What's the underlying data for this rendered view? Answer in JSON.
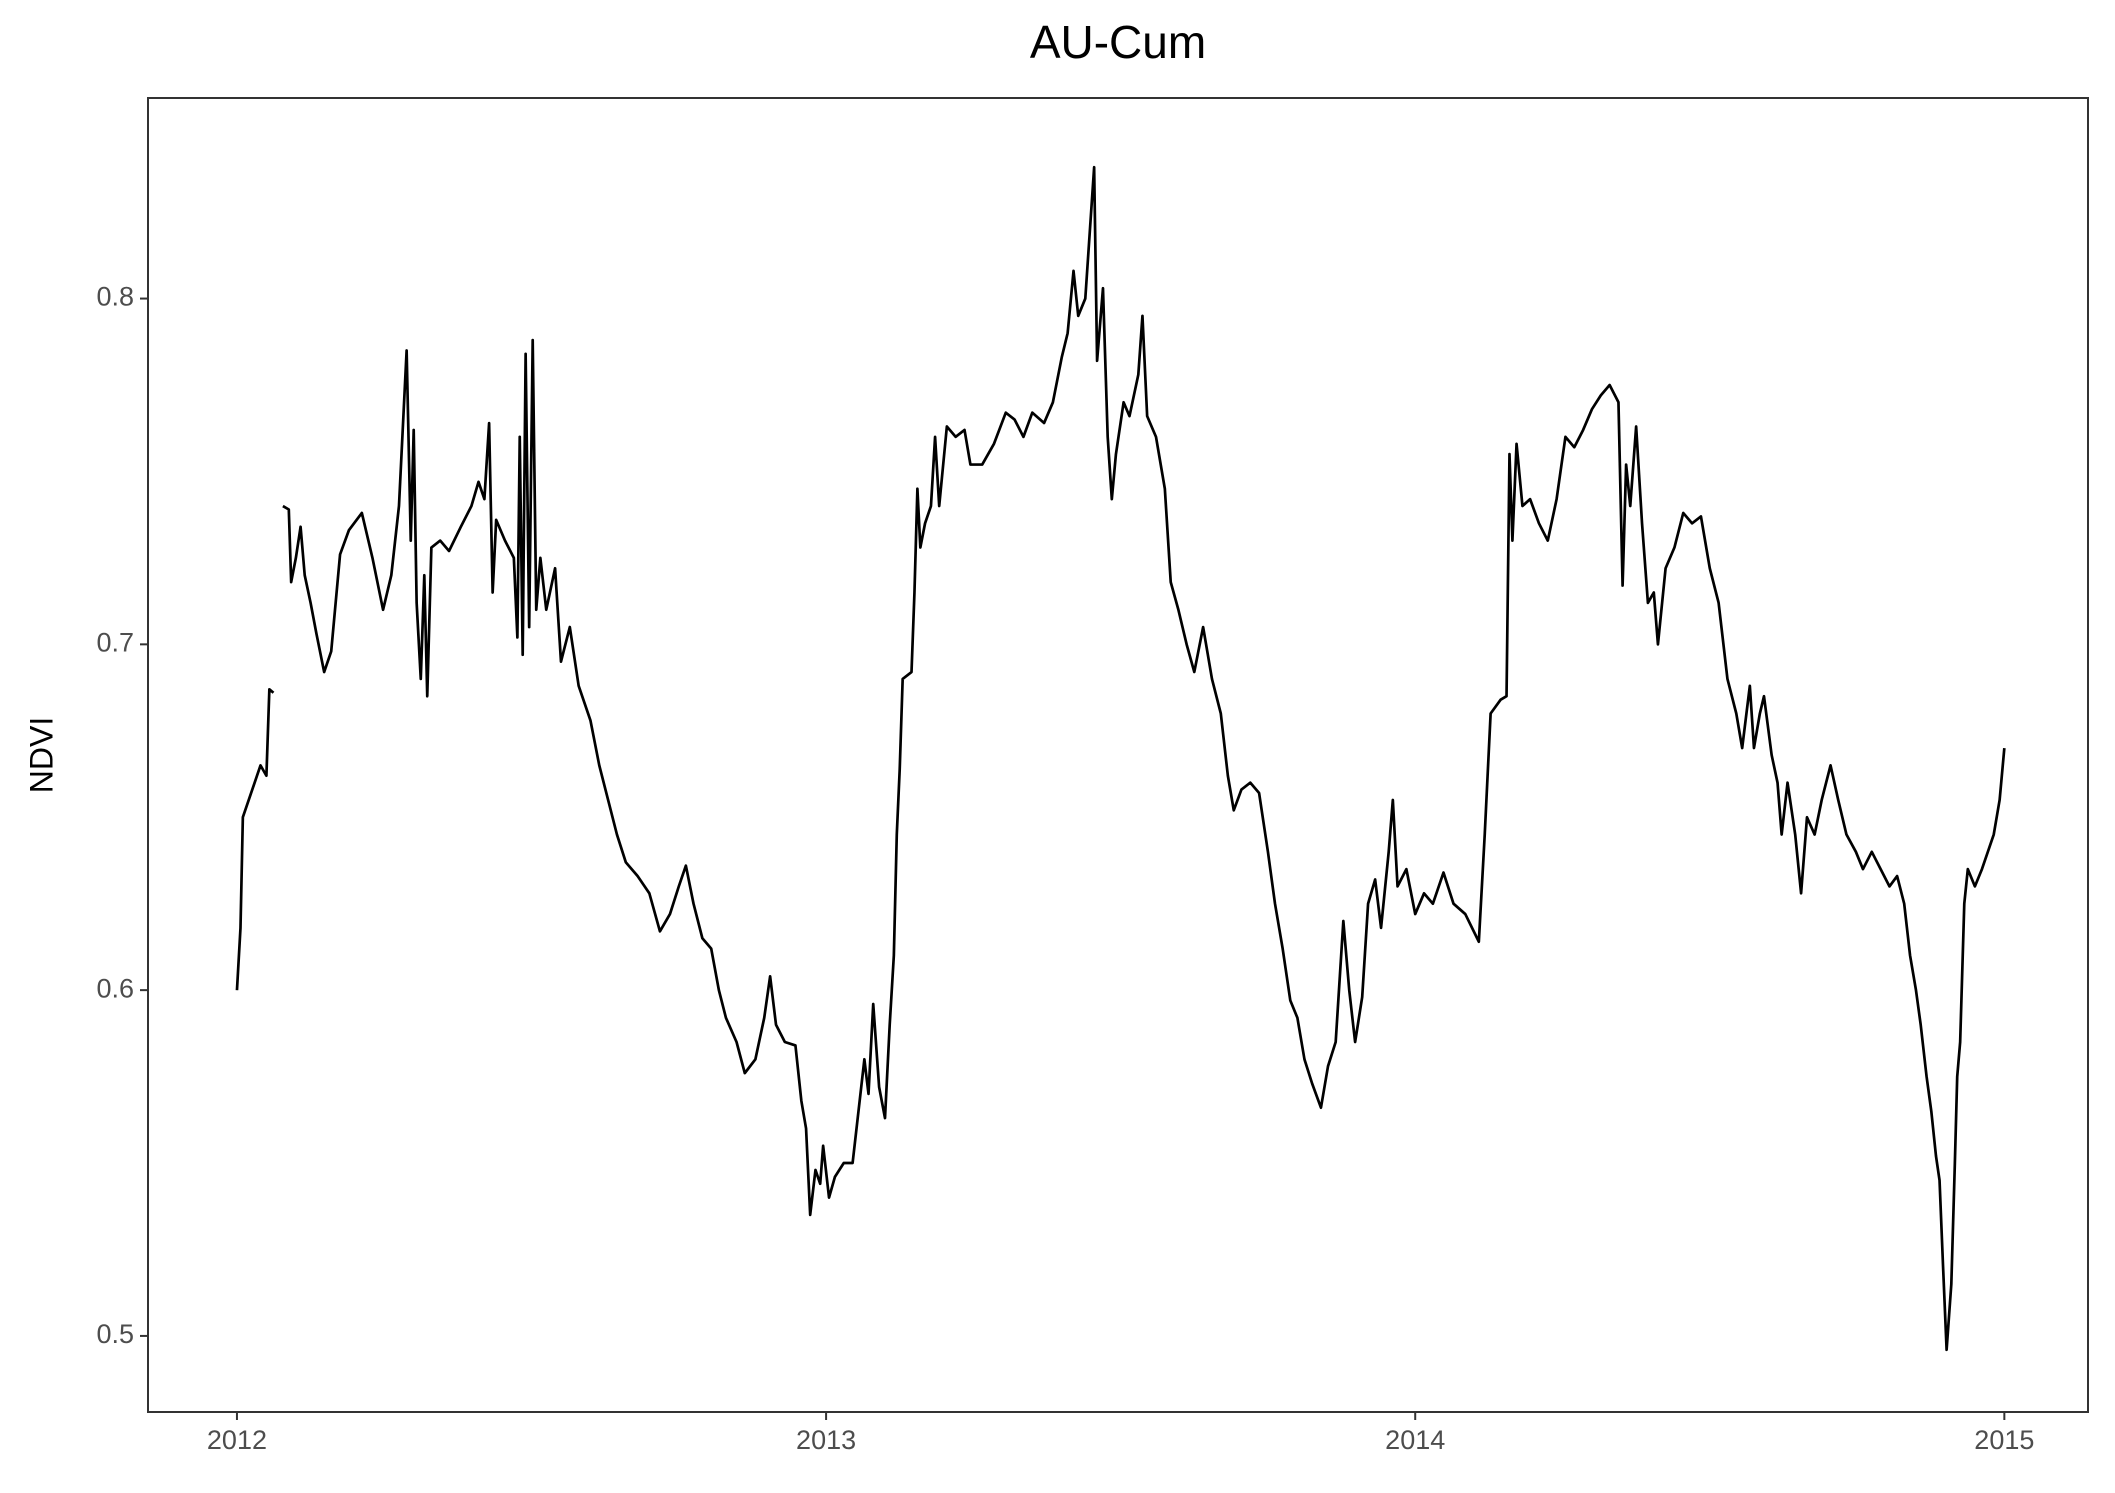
{
  "chart_data": {
    "type": "line",
    "title": "AU-Cum",
    "y_label": "NDVI",
    "x": [
      2012.0,
      2012.006,
      2012.01,
      2012.02,
      2012.03,
      2012.04,
      2012.05,
      2012.055,
      2012.062,
      2012.07,
      2012.078,
      2012.088,
      2012.092,
      2012.1,
      2012.108,
      2012.115,
      2012.125,
      2012.135,
      2012.148,
      2012.16,
      2012.175,
      2012.19,
      2012.212,
      2012.23,
      2012.248,
      2012.262,
      2012.275,
      2012.288,
      2012.295,
      2012.3,
      2012.305,
      2012.312,
      2012.318,
      2012.323,
      2012.33,
      2012.345,
      2012.36,
      2012.38,
      2012.398,
      2012.41,
      2012.42,
      2012.428,
      2012.434,
      2012.44,
      2012.455,
      2012.47,
      2012.476,
      2012.48,
      2012.485,
      2012.49,
      2012.496,
      2012.502,
      2012.508,
      2012.515,
      2012.525,
      2012.54,
      2012.55,
      2012.565,
      2012.58,
      2012.6,
      2012.615,
      2012.63,
      2012.645,
      2012.66,
      2012.68,
      2012.7,
      2012.718,
      2012.735,
      2012.75,
      2012.762,
      2012.775,
      2012.79,
      2012.805,
      2012.818,
      2012.83,
      2012.848,
      2012.862,
      2012.88,
      2012.895,
      2012.905,
      2012.915,
      2012.93,
      2012.948,
      2012.958,
      2012.966,
      2012.973,
      2012.982,
      2012.99,
      2012.995,
      2013.005,
      2013.015,
      2013.03,
      2013.045,
      2013.055,
      2013.065,
      2013.072,
      2013.08,
      2013.09,
      2013.1,
      2013.108,
      2013.115,
      2013.12,
      2013.125,
      2013.13,
      2013.145,
      2013.15,
      2013.155,
      2013.16,
      2013.168,
      2013.178,
      2013.185,
      2013.192,
      2013.205,
      2013.22,
      2013.235,
      2013.245,
      2013.265,
      2013.285,
      2013.305,
      2013.32,
      2013.335,
      2013.35,
      2013.37,
      2013.385,
      2013.4,
      2013.41,
      2013.42,
      2013.428,
      2013.44,
      2013.455,
      2013.46,
      2013.47,
      2013.478,
      2013.485,
      2013.492,
      2013.505,
      2013.515,
      2013.53,
      2013.537,
      2013.545,
      2013.56,
      2013.575,
      2013.585,
      2013.598,
      2013.612,
      2013.625,
      2013.64,
      2013.655,
      2013.67,
      2013.682,
      2013.692,
      2013.705,
      2013.72,
      2013.735,
      2013.75,
      2013.762,
      2013.775,
      2013.788,
      2013.8,
      2013.812,
      2013.825,
      2013.84,
      2013.852,
      2013.865,
      2013.878,
      2013.888,
      2013.898,
      2013.91,
      2013.92,
      2013.932,
      2013.942,
      2013.955,
      2013.962,
      2013.97,
      2013.985,
      2014.0,
      2014.015,
      2014.03,
      2014.048,
      2014.065,
      2014.085,
      2014.108,
      2014.118,
      2014.128,
      2014.145,
      2014.155,
      2014.16,
      2014.165,
      2014.172,
      2014.182,
      2014.195,
      2014.21,
      2014.225,
      2014.24,
      2014.255,
      2014.27,
      2014.285,
      2014.3,
      2014.315,
      2014.33,
      2014.345,
      2014.352,
      2014.358,
      2014.365,
      2014.375,
      2014.385,
      2014.395,
      2014.405,
      2014.412,
      2014.425,
      2014.44,
      2014.455,
      2014.47,
      2014.485,
      2014.5,
      2014.515,
      2014.53,
      2014.545,
      2014.555,
      2014.568,
      2014.575,
      2014.585,
      2014.592,
      2014.605,
      2014.615,
      2014.622,
      2014.632,
      2014.645,
      2014.655,
      2014.665,
      2014.678,
      2014.69,
      2014.705,
      2014.718,
      2014.732,
      2014.748,
      2014.76,
      2014.775,
      2014.79,
      2014.805,
      2014.818,
      2014.83,
      2014.84,
      2014.85,
      2014.858,
      2014.868,
      2014.876,
      2014.884,
      2014.89,
      2014.896,
      2014.902,
      2014.91,
      2014.916,
      2014.92,
      2014.925,
      2014.932,
      2014.938,
      2014.95,
      2014.962,
      2014.972,
      2014.982,
      2014.992,
      2015.0
    ],
    "series": [
      {
        "color": "#000000",
        "values": [
          0.6,
          0.618,
          0.65,
          0.655,
          0.66,
          0.665,
          0.662,
          0.687,
          0.686,
          null,
          0.74,
          0.739,
          0.718,
          0.725,
          0.734,
          0.72,
          0.712,
          0.703,
          0.692,
          0.698,
          0.726,
          0.733,
          0.738,
          0.725,
          0.71,
          0.72,
          0.74,
          0.785,
          0.73,
          0.762,
          0.712,
          0.69,
          0.72,
          0.685,
          0.728,
          0.73,
          0.727,
          0.734,
          0.74,
          0.747,
          0.742,
          0.764,
          0.715,
          0.736,
          0.73,
          0.725,
          0.702,
          0.76,
          0.697,
          0.784,
          0.705,
          0.788,
          0.71,
          0.725,
          0.71,
          0.722,
          0.695,
          0.705,
          0.688,
          0.678,
          0.665,
          0.655,
          0.645,
          0.637,
          0.633,
          0.628,
          0.617,
          0.622,
          0.63,
          0.636,
          0.625,
          0.615,
          0.612,
          0.6,
          0.592,
          0.585,
          0.576,
          0.58,
          0.592,
          0.604,
          0.59,
          0.585,
          0.584,
          0.568,
          0.56,
          0.535,
          0.548,
          0.544,
          0.555,
          0.54,
          0.546,
          0.55,
          0.55,
          0.565,
          0.58,
          0.57,
          0.596,
          0.572,
          0.563,
          0.59,
          0.61,
          0.645,
          0.664,
          0.69,
          0.692,
          0.715,
          0.745,
          0.728,
          0.735,
          0.74,
          0.76,
          0.74,
          0.763,
          0.76,
          0.762,
          0.752,
          0.752,
          0.758,
          0.767,
          0.765,
          0.76,
          0.767,
          0.764,
          0.77,
          0.783,
          0.79,
          0.808,
          0.795,
          0.8,
          0.838,
          0.782,
          0.803,
          0.76,
          0.742,
          0.755,
          0.77,
          0.766,
          0.778,
          0.795,
          0.766,
          0.76,
          0.745,
          0.718,
          0.71,
          0.7,
          0.692,
          0.705,
          0.69,
          0.68,
          0.662,
          0.652,
          0.658,
          0.66,
          0.657,
          0.64,
          0.625,
          0.612,
          0.597,
          0.592,
          0.58,
          0.573,
          0.566,
          0.578,
          0.585,
          0.62,
          0.6,
          0.585,
          0.598,
          0.625,
          0.632,
          0.618,
          0.64,
          0.655,
          0.63,
          0.635,
          0.622,
          0.628,
          0.625,
          0.634,
          0.625,
          0.622,
          0.614,
          0.645,
          0.68,
          0.684,
          0.685,
          0.755,
          0.73,
          0.758,
          0.74,
          0.742,
          0.735,
          0.73,
          0.742,
          0.76,
          0.757,
          0.762,
          0.768,
          0.772,
          0.775,
          0.77,
          0.717,
          0.752,
          0.74,
          0.763,
          0.735,
          0.712,
          0.715,
          0.7,
          0.722,
          0.728,
          0.738,
          0.735,
          0.737,
          0.722,
          0.712,
          0.69,
          0.68,
          0.67,
          0.688,
          0.67,
          0.68,
          0.685,
          0.668,
          0.66,
          0.645,
          0.66,
          0.645,
          0.628,
          0.65,
          0.645,
          0.655,
          0.665,
          0.655,
          0.645,
          0.64,
          0.635,
          0.64,
          0.635,
          0.63,
          0.633,
          0.625,
          0.61,
          0.6,
          0.59,
          0.575,
          0.565,
          0.552,
          0.545,
          0.52,
          0.496,
          0.515,
          0.55,
          0.575,
          0.585,
          0.625,
          0.635,
          0.63,
          0.635,
          0.64,
          0.645,
          0.655,
          0.67
        ]
      }
    ],
    "xlim": [
      2011.849,
      2015.142
    ],
    "xticks": [
      2012,
      2013,
      2014,
      2015
    ],
    "ylim": [
      0.478,
      0.858
    ],
    "yticks": [
      0.5,
      0.6,
      0.7,
      0.8
    ],
    "grid": false
  }
}
